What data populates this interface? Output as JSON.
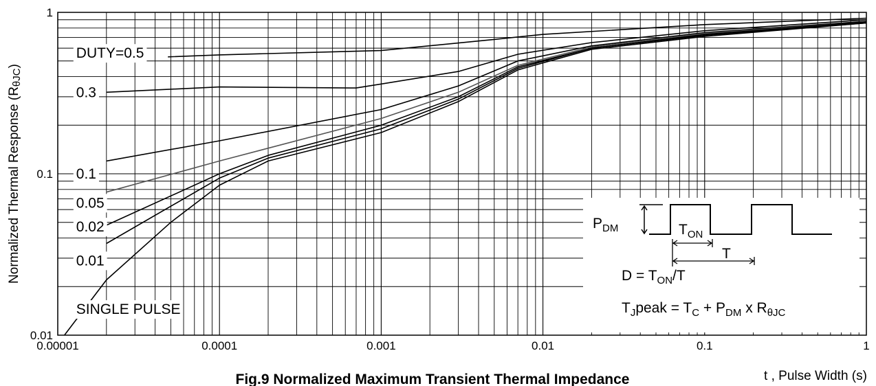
{
  "chart_data": {
    "type": "line",
    "title": "Fig.9 Normalized Maximum Transient Thermal Impedance",
    "xlabel": "t , Pulse Width (s)",
    "ylabel": "Normalized Thermal Response (R",
    "ylabel_sub": "θJC",
    "ylabel_close": ")",
    "x_scale": "log",
    "y_scale": "log",
    "xlim": [
      1e-05,
      1
    ],
    "ylim": [
      0.01,
      1
    ],
    "grid": true,
    "x_ticks": [
      {
        "value": 1e-05,
        "label": "0.00001"
      },
      {
        "value": 0.0001,
        "label": "0.0001"
      },
      {
        "value": 0.001,
        "label": "0.001"
      },
      {
        "value": 0.01,
        "label": "0.01"
      },
      {
        "value": 0.1,
        "label": "0.1"
      },
      {
        "value": 1,
        "label": "1"
      }
    ],
    "y_ticks": [
      {
        "value": 0.01,
        "label": "0.01"
      },
      {
        "value": 0.1,
        "label": "0.1"
      },
      {
        "value": 1,
        "label": "1"
      }
    ],
    "series": [
      {
        "name": "DUTY=0.5",
        "label_at": [
          1.25e-05,
          0.56
        ],
        "color": "#000000",
        "points": [
          [
            4.8e-05,
            0.53
          ],
          [
            0.0001,
            0.545
          ],
          [
            0.001,
            0.58
          ],
          [
            0.005,
            0.68
          ],
          [
            0.01,
            0.73
          ],
          [
            0.1,
            0.84
          ],
          [
            1,
            0.92
          ]
        ]
      },
      {
        "name": "0.3",
        "label_at": [
          1.25e-05,
          0.32
        ],
        "color": "#000000",
        "points": [
          [
            2e-05,
            0.32
          ],
          [
            0.0001,
            0.345
          ],
          [
            0.0007,
            0.34
          ],
          [
            0.001,
            0.36
          ],
          [
            0.003,
            0.43
          ],
          [
            0.007,
            0.55
          ],
          [
            0.02,
            0.65
          ],
          [
            0.1,
            0.77
          ],
          [
            1,
            0.9
          ]
        ]
      },
      {
        "name": "0.1",
        "label_at": [
          1.25e-05,
          0.1
        ],
        "color": "#000000",
        "points": [
          [
            2e-05,
            0.12
          ],
          [
            0.0001,
            0.16
          ],
          [
            0.001,
            0.25
          ],
          [
            0.003,
            0.35
          ],
          [
            0.007,
            0.5
          ],
          [
            0.02,
            0.62
          ],
          [
            0.1,
            0.75
          ],
          [
            1,
            0.88
          ]
        ]
      },
      {
        "name": "0.05",
        "label_at": [
          1.25e-05,
          0.066
        ],
        "color": "#555555",
        "points": [
          [
            2e-05,
            0.077
          ],
          [
            0.0001,
            0.12
          ],
          [
            0.001,
            0.22
          ],
          [
            0.003,
            0.32
          ],
          [
            0.007,
            0.47
          ],
          [
            0.02,
            0.61
          ],
          [
            0.1,
            0.74
          ],
          [
            1,
            0.87
          ]
        ]
      },
      {
        "name": "0.02",
        "label_at": [
          1.25e-05,
          0.047
        ],
        "color": "#000000",
        "points": [
          [
            2e-05,
            0.048
          ],
          [
            0.0001,
            0.1
          ],
          [
            0.0002,
            0.13
          ],
          [
            0.001,
            0.2
          ],
          [
            0.003,
            0.3
          ],
          [
            0.007,
            0.46
          ],
          [
            0.02,
            0.6
          ],
          [
            0.1,
            0.73
          ],
          [
            1,
            0.87
          ]
        ]
      },
      {
        "name": "0.01",
        "label_at": [
          1.25e-05,
          0.029
        ],
        "color": "#000000",
        "points": [
          [
            2e-05,
            0.037
          ],
          [
            0.0001,
            0.094
          ],
          [
            0.0002,
            0.125
          ],
          [
            0.001,
            0.19
          ],
          [
            0.003,
            0.29
          ],
          [
            0.007,
            0.45
          ],
          [
            0.02,
            0.6
          ],
          [
            0.1,
            0.72
          ],
          [
            1,
            0.86
          ]
        ]
      },
      {
        "name": "SINGLE PULSE",
        "label_at": [
          1.25e-05,
          0.0145
        ],
        "color": "#000000",
        "points": [
          [
            1.1e-05,
            0.01
          ],
          [
            2e-05,
            0.022
          ],
          [
            5e-05,
            0.05
          ],
          [
            0.0001,
            0.085
          ],
          [
            0.0002,
            0.12
          ],
          [
            0.001,
            0.18
          ],
          [
            0.003,
            0.28
          ],
          [
            0.007,
            0.44
          ],
          [
            0.02,
            0.59
          ],
          [
            0.1,
            0.71
          ],
          [
            1,
            0.86
          ]
        ]
      }
    ],
    "inset": {
      "pdm": "P",
      "pdm_sub": "DM",
      "ton": "T",
      "ton_sub": "ON",
      "period": "T",
      "duty_pre": "D = T",
      "duty_sub": "ON",
      "duty_post": "/T",
      "tj_pre": "T",
      "tj_sub1": "J",
      "tj_mid1": "peak = T",
      "tj_sub2": "C",
      "tj_mid2": " + P",
      "tj_sub3": "DM",
      "tj_mid3": " x R",
      "tj_sub4": "θJC"
    }
  }
}
